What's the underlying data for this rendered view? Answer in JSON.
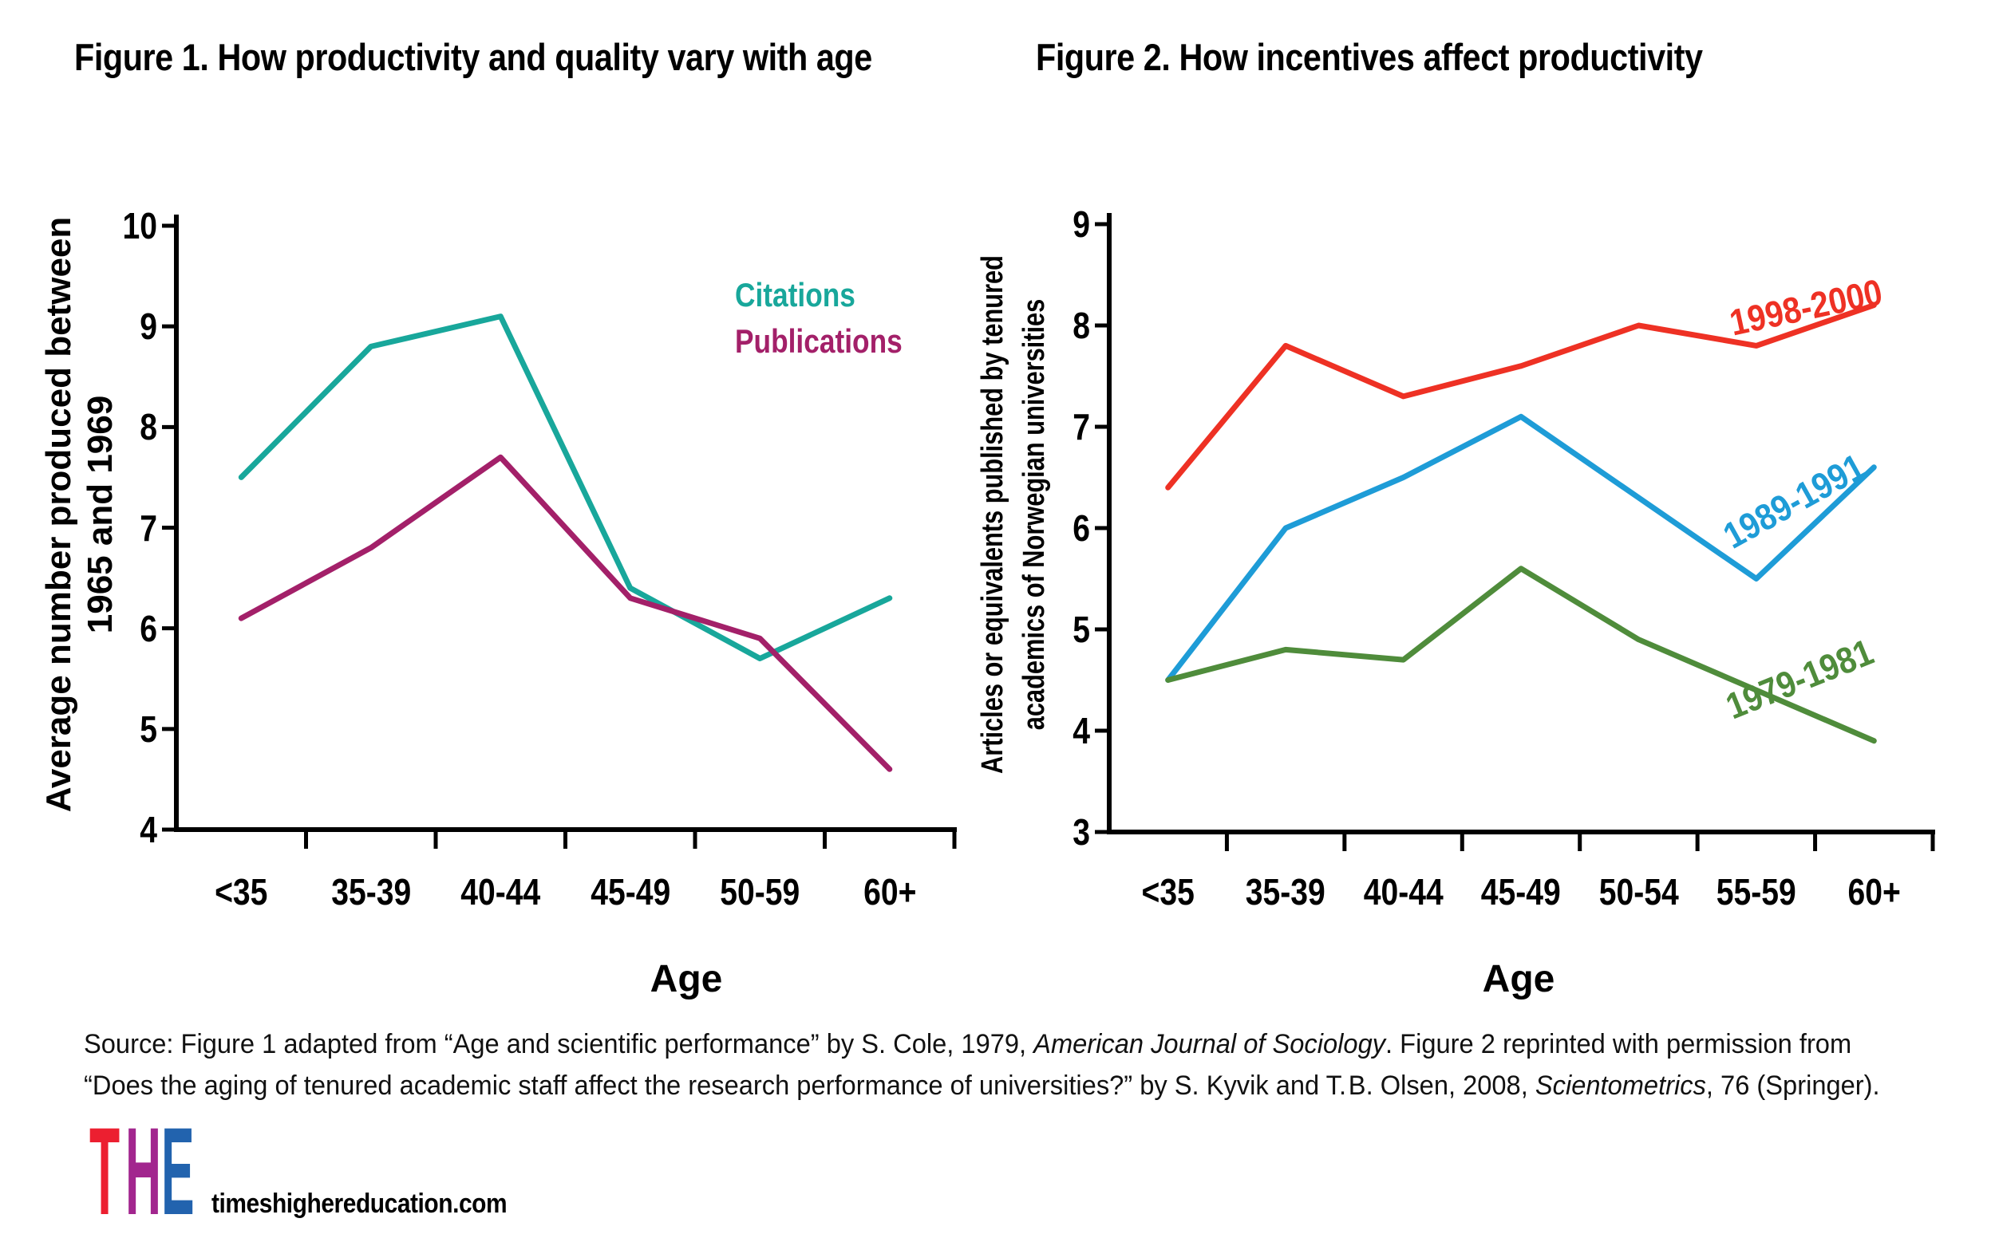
{
  "figure1": {
    "title": "Figure 1. How productivity and quality vary with age",
    "y_axis_label_lines": [
      "Average number produced between",
      "1965 and 1969"
    ],
    "x_axis_label": "Age",
    "y_ticks": [
      "10",
      "9",
      "8",
      "7",
      "6",
      "5",
      "4"
    ],
    "legend": [
      {
        "label": "Citations",
        "color": "#18A79B"
      },
      {
        "label": "Publications",
        "color": "#A32069"
      }
    ]
  },
  "figure2": {
    "title": "Figure 2. How incentives affect productivity",
    "y_axis_label_lines": [
      "Articles or equivalents published by tenured",
      "academics of Norwegian universities"
    ],
    "x_axis_label": "Age",
    "y_ticks": [
      "9",
      "8",
      "7",
      "6",
      "5",
      "4",
      "3"
    ]
  },
  "chart_data": [
    {
      "type": "line",
      "title": "Figure 1. How productivity and quality vary with age",
      "categories": [
        "<35",
        "35-39",
        "40-44",
        "45-49",
        "50-59",
        "60+"
      ],
      "series": [
        {
          "name": "Citations",
          "color": "#18A79B",
          "values": [
            7.5,
            8.8,
            9.1,
            6.4,
            5.7,
            6.3
          ]
        },
        {
          "name": "Publications",
          "color": "#A32069",
          "values": [
            6.1,
            6.8,
            7.7,
            6.3,
            5.9,
            4.6
          ]
        }
      ],
      "xlabel": "Age",
      "ylabel": "Average number produced between 1965 and 1969",
      "ylim": [
        4,
        10
      ],
      "grid": false,
      "legend_position": "upper right inside"
    },
    {
      "type": "line",
      "title": "Figure 2. How incentives affect productivity",
      "categories": [
        "<35",
        "35-39",
        "40-44",
        "45-49",
        "50-54",
        "55-59",
        "60+"
      ],
      "series": [
        {
          "name": "1998-2000",
          "color": "#EE3124",
          "values": [
            6.4,
            7.8,
            7.3,
            7.6,
            8.0,
            7.8,
            8.2
          ]
        },
        {
          "name": "1989-1991",
          "color": "#1E9CD7",
          "values": [
            4.5,
            6.0,
            6.5,
            7.1,
            6.3,
            5.5,
            6.6
          ]
        },
        {
          "name": "1979-1981",
          "color": "#4F8C3B",
          "values": [
            4.5,
            4.8,
            4.7,
            5.6,
            4.9,
            4.4,
            3.9
          ]
        }
      ],
      "xlabel": "Age",
      "ylabel": "Articles or equivalents published by tenured academics of Norwegian universities",
      "ylim": [
        3,
        9
      ],
      "grid": false,
      "legend_position": "inline rotated labels"
    }
  ],
  "source": {
    "lines": [
      [
        {
          "text": "Source: Figure 1 adapted from “Age and scientific performance” by S. Cole, 1979, ",
          "italic": false
        },
        {
          "text": "American Journal of Sociology",
          "italic": true
        },
        {
          "text": ". Figure 2 reprinted with permission from",
          "italic": false
        }
      ],
      [
        {
          "text": "“Does the aging of tenured academic staff affect the research performance of universities?” by S. Kyvik and T. B. Olsen, 2008, ",
          "italic": false
        },
        {
          "text": "Scientometrics",
          "italic": true
        },
        {
          "text": ", 76 (Springer).",
          "italic": false
        }
      ]
    ]
  },
  "footer": {
    "logo_letters": [
      {
        "char": "T",
        "color": "#EC1F30"
      },
      {
        "char": "H",
        "color": "#A2268E"
      },
      {
        "char": "E",
        "color": "#2263AE"
      }
    ],
    "website": "timeshighereducation.com"
  }
}
